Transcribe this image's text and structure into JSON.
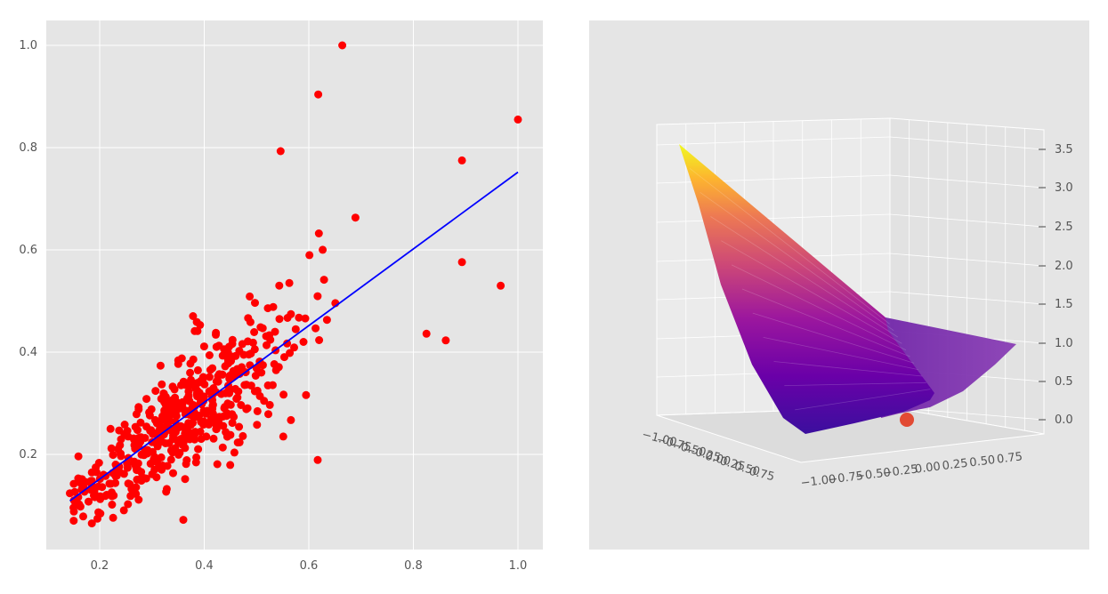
{
  "chart_data": [
    {
      "type": "scatter",
      "title": "",
      "xlabel": "",
      "ylabel": "",
      "xlim": [
        0.1,
        1.05
      ],
      "ylim": [
        0.025,
        1.05
      ],
      "x_ticks": [
        0.2,
        0.4,
        0.6,
        0.8,
        1.0
      ],
      "y_ticks": [
        0.2,
        0.4,
        0.6,
        0.8,
        1.0
      ],
      "x_tick_labels": [
        "0.2",
        "0.4",
        "0.6",
        "0.8",
        "1.0"
      ],
      "y_tick_labels": [
        "0.2",
        "0.4",
        "0.6",
        "0.8",
        "1.0"
      ],
      "grid": true,
      "style": "ggplot",
      "series": [
        {
          "kind": "points",
          "color": "#ff0000",
          "count": 500,
          "notable_points": [
            [
              0.664,
              1.0
            ],
            [
              1.0,
              0.855
            ],
            [
              0.618,
              0.904
            ],
            [
              0.546,
              0.793
            ],
            [
              0.967,
              0.53
            ],
            [
              0.893,
              0.775
            ],
            [
              0.893,
              0.576
            ],
            [
              0.825,
              0.436
            ],
            [
              0.862,
              0.423
            ],
            [
              0.143,
              0.124
            ],
            [
              0.185,
              0.065
            ],
            [
              0.36,
              0.072
            ],
            [
              0.617,
              0.189
            ]
          ],
          "description": "dense cloud of ~500 red points; bulk near x 0.2-0.5, y 0.15-0.45; spreads upward/rightward with increasing variance"
        },
        {
          "kind": "fit_line",
          "color": "#0000ff",
          "x": [
            0.143,
            1.0
          ],
          "y": [
            0.109,
            0.752
          ]
        }
      ]
    },
    {
      "type": "surface3d",
      "title": "",
      "colormap": "plasma",
      "x_ticks": [
        "−1.00",
        "−0.75",
        "−0.50",
        "−0.25",
        "0.00",
        "0.25",
        "0.50",
        "0.75"
      ],
      "y_ticks": [
        "−1.00",
        "−0.75",
        "−0.50",
        "−0.25",
        "0.00",
        "0.25",
        "0.50",
        "0.75"
      ],
      "z_ticks": [
        "0.0",
        "0.5",
        "1.0",
        "1.5",
        "2.0",
        "2.5",
        "3.0",
        "3.5"
      ],
      "xlim": [
        -1,
        1
      ],
      "ylim": [
        -1,
        1
      ],
      "zlim": [
        0,
        3.6
      ],
      "description": "convex bowl-shaped loss surface, highest (~3.5) at far-left corner, minimum near 0 at front; red marker at surface minimum",
      "marker": {
        "x": 0.25,
        "y": -0.25,
        "z": 0.0,
        "color": "#e24a33"
      }
    }
  ]
}
